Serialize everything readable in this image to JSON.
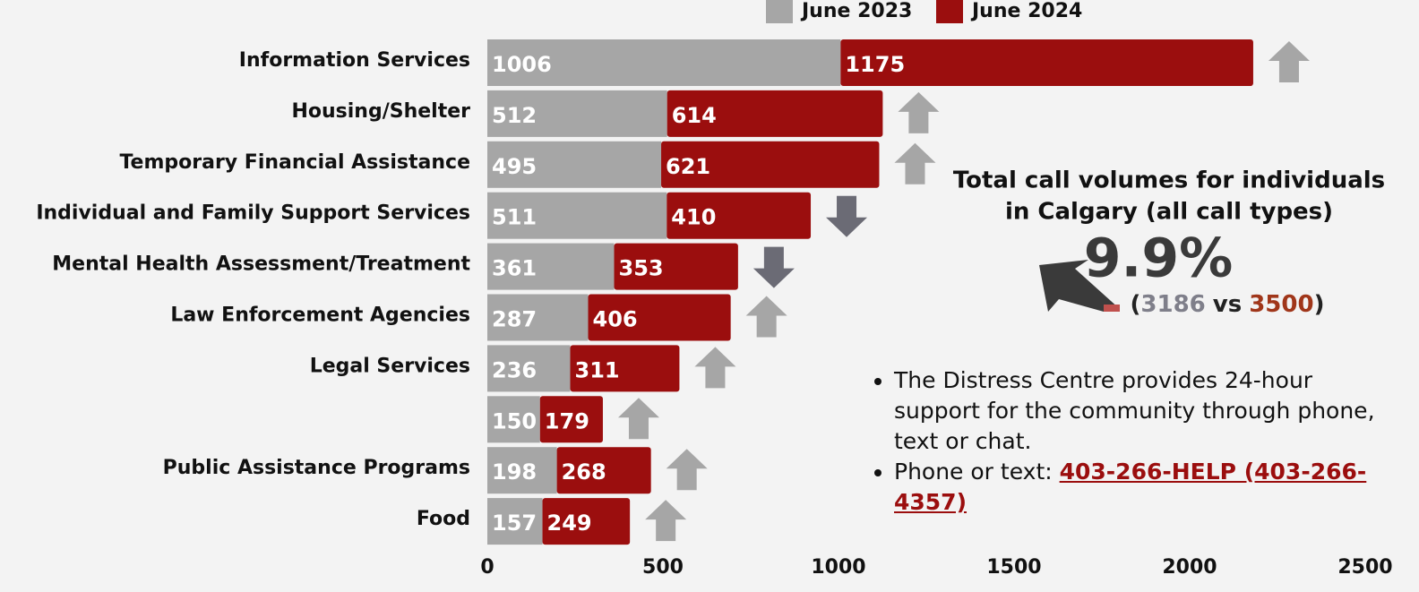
{
  "chart_data": {
    "type": "stacked-barh",
    "categories": [
      "Information Services",
      "Housing/Shelter",
      "Temporary Financial Assistance",
      "Individual and Family Support Services",
      "Mental Health Assessment/Treatment",
      "Law Enforcement Agencies",
      "Legal Services",
      null,
      "Public Assistance Programs",
      "Food"
    ],
    "series": [
      {
        "name": "June 2023",
        "color": "#a6a6a6",
        "values": [
          1006,
          512,
          495,
          511,
          361,
          287,
          236,
          150,
          198,
          157
        ]
      },
      {
        "name": "June 2024",
        "color": "#9b0e0e",
        "values": [
          1175,
          614,
          621,
          410,
          353,
          406,
          311,
          179,
          268,
          249
        ]
      }
    ],
    "xlim": [
      0,
      2500
    ],
    "xticks": [
      0,
      500,
      1000,
      1500,
      2000,
      2500
    ],
    "legend": "top",
    "summary": {
      "title_line1": "Total call volumes for individuals",
      "title_line2": "in Calgary (all call types)",
      "change": "9.9%",
      "open": "(",
      "before": "3186",
      "vs": "vs",
      "after": "3500",
      "close": ")"
    },
    "notes": {
      "item1": "The Distress Centre provides 24-hour support for the community through phone, text or chat.",
      "item2_prefix": "Phone or text: ",
      "item2_link": "403-266-HELP (403-266-4357) "
    }
  }
}
